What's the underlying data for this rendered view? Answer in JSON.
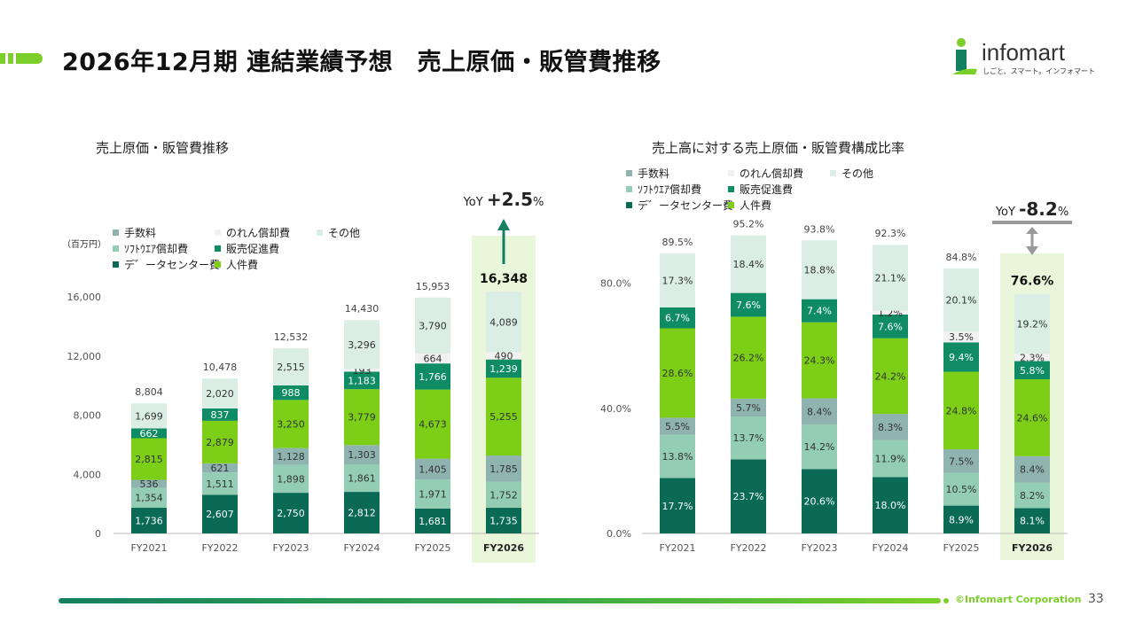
{
  "page": {
    "title": "2026年12月期 連結業績予想　売上原価・販管費推移",
    "corp": "©Infomart Corporation",
    "page_number": "33"
  },
  "logo": {
    "name": "infomart",
    "tagline": "しごと、スマート。インフォマート"
  },
  "colors": {
    "tesuryo": "#8fb3ae",
    "noren": "#f1f1f1",
    "sonota": "#daeee6",
    "software": "#93cdb4",
    "hanbai": "#0f8c63",
    "data": "#0a6a55",
    "jinkenhi": "#7ccf16",
    "highlight": "#eaf6d9",
    "title_green": "#7ccf2a"
  },
  "chart_data": [
    {
      "type": "bar",
      "stacked": true,
      "title": "売上原価・販管費推移",
      "unit_label": "（百万円）",
      "categories": [
        "FY2021",
        "FY2022",
        "FY2023",
        "FY2024",
        "FY2025",
        "FY2026"
      ],
      "highlight_category": "FY2026",
      "ylim": [
        0,
        16000
      ],
      "yticks": [
        "0",
        "4,000",
        "8,000",
        "12,000",
        "16,000"
      ],
      "series": [
        {
          "name": "デ゛ータセンター費",
          "color_key": "data",
          "values": [
            1736,
            2607,
            2750,
            2812,
            1681,
            1735
          ],
          "labels": [
            "1,736",
            "2,607",
            "2,750",
            "2,812",
            "1,681",
            "1,735"
          ],
          "label_color": "#ffffff"
        },
        {
          "name": "ｿﾌﾄｳｴｱ償却費",
          "color_key": "software",
          "values": [
            1354,
            1511,
            1898,
            1861,
            1971,
            1752
          ],
          "labels": [
            "1,354",
            "1,511",
            "1,898",
            "1,861",
            "1,971",
            "1,752"
          ],
          "label_color": "#333333"
        },
        {
          "name": "手数料",
          "color_key": "tesuryo",
          "values": [
            536,
            621,
            1128,
            1303,
            1405,
            1785
          ],
          "labels": [
            "536",
            "621",
            "1,128",
            "1,303",
            "1,405",
            "1,785"
          ],
          "label_color": "#333333"
        },
        {
          "name": "人件費",
          "color_key": "jinkenhi",
          "values": [
            2815,
            2879,
            3250,
            3779,
            4673,
            5255
          ],
          "labels": [
            "2,815",
            "2,879",
            "3,250",
            "3,779",
            "4,673",
            "5,255"
          ],
          "label_color": "#333333"
        },
        {
          "name": "販売促進費",
          "color_key": "hanbai",
          "values": [
            662,
            837,
            988,
            1183,
            1766,
            1239
          ],
          "labels": [
            "662",
            "837",
            "988",
            "1,183",
            "1,766",
            "1,239"
          ],
          "label_color": "#ffffff"
        },
        {
          "name": "のれん償却費",
          "color_key": "noren",
          "values": [
            0,
            0,
            0,
            193,
            664,
            490
          ],
          "labels": [
            "",
            "",
            "",
            "193",
            "664",
            "490"
          ],
          "label_color": "#333333"
        },
        {
          "name": "その他",
          "color_key": "sonota",
          "values": [
            1699,
            2020,
            2515,
            3296,
            3790,
            4089
          ],
          "labels": [
            "1,699",
            "2,020",
            "2,515",
            "3,296",
            "3,790",
            "4,089"
          ],
          "label_color": "#333333"
        }
      ],
      "totals": [
        "8,804",
        "10,478",
        "12,532",
        "14,430",
        "15,953",
        "16,348"
      ],
      "legend": [
        {
          "name": "手数料",
          "color_key": "tesuryo"
        },
        {
          "name": "のれん償却費",
          "color_key": "noren"
        },
        {
          "name": "その他",
          "color_key": "sonota"
        },
        {
          "name": "ｿﾌﾄｳｴｱ償却費",
          "color_key": "software"
        },
        {
          "name": "販売促進費",
          "color_key": "hanbai"
        },
        {
          "name": "デ゛ータセンター費",
          "color_key": "data"
        },
        {
          "name": "人件費",
          "color_key": "jinkenhi"
        }
      ],
      "yoy": {
        "prefix": "YoY ",
        "value": "+2.5",
        "suffix": "%"
      }
    },
    {
      "type": "bar",
      "stacked": true,
      "title": "売上高に対する売上原価・販管費構成比率",
      "categories": [
        "FY2021",
        "FY2022",
        "FY2023",
        "FY2024",
        "FY2025",
        "FY2026"
      ],
      "highlight_category": "FY2026",
      "ylim": [
        0,
        95.2
      ],
      "yticks_values": [
        0,
        40,
        80
      ],
      "yticks": [
        "0.0%",
        "40.0%",
        "80.0%"
      ],
      "series": [
        {
          "name": "デ゛ータセンター費",
          "color_key": "data",
          "values": [
            17.7,
            23.7,
            20.6,
            18.0,
            8.9,
            8.1
          ],
          "labels": [
            "17.7%",
            "23.7%",
            "20.6%",
            "18.0%",
            "8.9%",
            "8.1%"
          ],
          "label_color": "#ffffff"
        },
        {
          "name": "ｿﾌﾄｳｴｱ償却費",
          "color_key": "software",
          "values": [
            13.8,
            13.7,
            14.2,
            11.9,
            10.5,
            8.2
          ],
          "labels": [
            "13.8%",
            "13.7%",
            "14.2%",
            "11.9%",
            "10.5%",
            "8.2%"
          ],
          "label_color": "#333333"
        },
        {
          "name": "手数料",
          "color_key": "tesuryo",
          "values": [
            5.5,
            5.7,
            8.4,
            8.3,
            7.5,
            8.4
          ],
          "labels": [
            "5.5%",
            "5.7%",
            "8.4%",
            "8.3%",
            "7.5%",
            "8.4%"
          ],
          "label_color": "#333333"
        },
        {
          "name": "人件費",
          "color_key": "jinkenhi",
          "values": [
            28.6,
            26.2,
            24.3,
            24.2,
            24.8,
            24.6
          ],
          "labels": [
            "28.6%",
            "26.2%",
            "24.3%",
            "24.2%",
            "24.8%",
            "24.6%"
          ],
          "label_color": "#333333"
        },
        {
          "name": "販売促進費",
          "color_key": "hanbai",
          "values": [
            6.7,
            7.6,
            7.4,
            7.6,
            9.4,
            5.8
          ],
          "labels": [
            "6.7%",
            "7.6%",
            "7.4%",
            "7.6%",
            "9.4%",
            "5.8%"
          ],
          "label_color": "#ffffff"
        },
        {
          "name": "のれん償却費",
          "color_key": "noren",
          "values": [
            0,
            0,
            0,
            1.2,
            3.5,
            2.3
          ],
          "labels": [
            "",
            "",
            "",
            "1.2%",
            "3.5%",
            "2.3%"
          ],
          "label_color": "#333333"
        },
        {
          "name": "その他",
          "color_key": "sonota",
          "values": [
            17.3,
            18.4,
            18.8,
            21.1,
            20.1,
            19.2
          ],
          "labels": [
            "17.3%",
            "18.4%",
            "18.8%",
            "21.1%",
            "20.1%",
            "19.2%"
          ],
          "label_color": "#333333"
        }
      ],
      "totals": [
        "89.5%",
        "95.2%",
        "93.8%",
        "92.3%",
        "84.8%",
        "76.6%"
      ],
      "legend": [
        {
          "name": "手数料",
          "color_key": "tesuryo"
        },
        {
          "name": "のれん償却費",
          "color_key": "noren"
        },
        {
          "name": "その他",
          "color_key": "sonota"
        },
        {
          "name": "ｿﾌﾄｳｴｱ償却費",
          "color_key": "software"
        },
        {
          "name": "販売促進費",
          "color_key": "hanbai"
        },
        {
          "name": "デ゛ータセンター費",
          "color_key": "data"
        },
        {
          "name": "人件費",
          "color_key": "jinkenhi"
        }
      ],
      "yoy": {
        "prefix": "YoY ",
        "value": "-8.2",
        "suffix": "%"
      }
    }
  ]
}
